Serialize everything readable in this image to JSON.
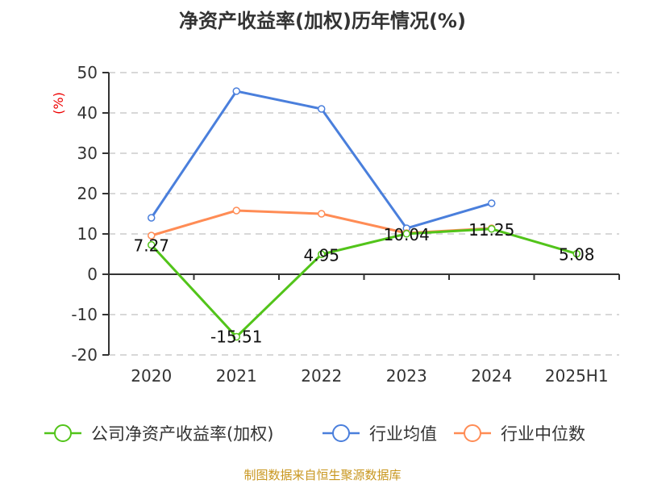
{
  "title": "净资产收益率(加权)历年情况(%)",
  "footer": "制图数据来自恒生聚源数据库",
  "chart_data": {
    "type": "line",
    "title": "净资产收益率(加权)历年情况(%)",
    "ylabel": "(%)",
    "ylim": [
      -20,
      50
    ],
    "yticks": [
      -20,
      -10,
      0,
      10,
      20,
      30,
      40,
      50
    ],
    "grid": true,
    "legend_position": "bottom",
    "categories": [
      "2020",
      "2021",
      "2022",
      "2023",
      "2024",
      "2025H1"
    ],
    "series": [
      {
        "name": "公司净资产收益率(加权)",
        "color": "#52c41a",
        "values": [
          7.27,
          -15.51,
          4.95,
          10.04,
          11.25,
          5.08
        ],
        "labels": [
          "7.27",
          "-15.51",
          "4.95",
          "10.04",
          "11.25",
          "5.08"
        ]
      },
      {
        "name": "行业均值",
        "color": "#4a7fdc",
        "values": [
          14.0,
          45.4,
          41.0,
          11.4,
          17.6,
          null
        ]
      },
      {
        "name": "行业中位数",
        "color": "#ff8c55",
        "values": [
          9.6,
          15.8,
          15.0,
          10.2,
          11.4,
          null
        ]
      }
    ]
  }
}
